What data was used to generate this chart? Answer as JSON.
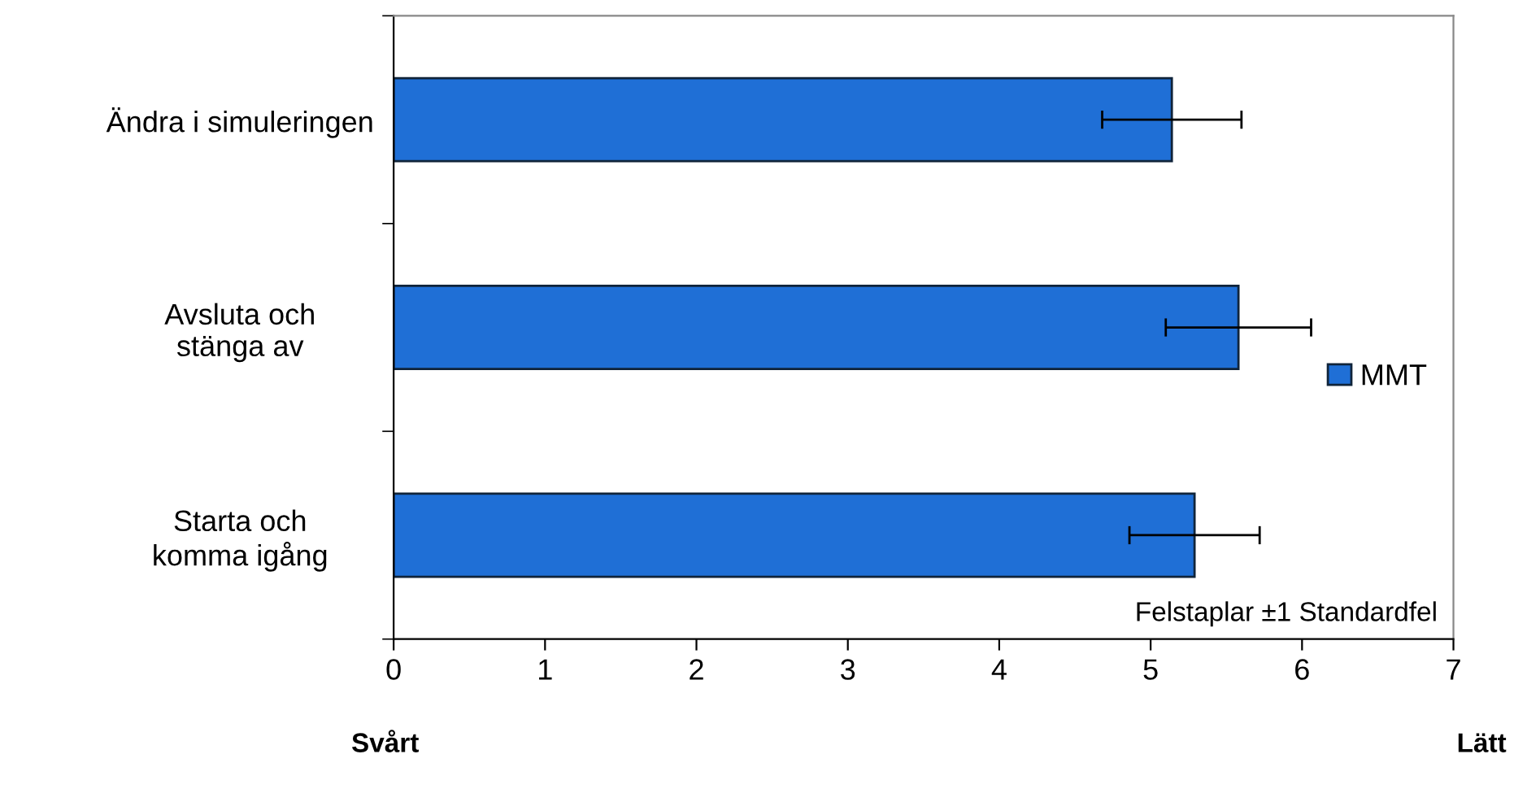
{
  "chart_data": {
    "type": "bar",
    "orientation": "horizontal",
    "categories": [
      "Ändra i simuleringen",
      "Avsluta och\nstänga av",
      "Starta och\nkomma igång"
    ],
    "series": [
      {
        "name": "MMT",
        "color": "#1f6fd6",
        "values": [
          5.14,
          5.58,
          5.29
        ],
        "errors": [
          0.46,
          0.48,
          0.43
        ]
      }
    ],
    "xlim": [
      0,
      7
    ],
    "xticks": [
      0,
      1,
      2,
      3,
      4,
      5,
      6,
      7
    ],
    "legend": "right",
    "grid": false,
    "annotations": [
      "Felstaplar ±1 Standardfel",
      "Svårt",
      "Lätt"
    ]
  }
}
